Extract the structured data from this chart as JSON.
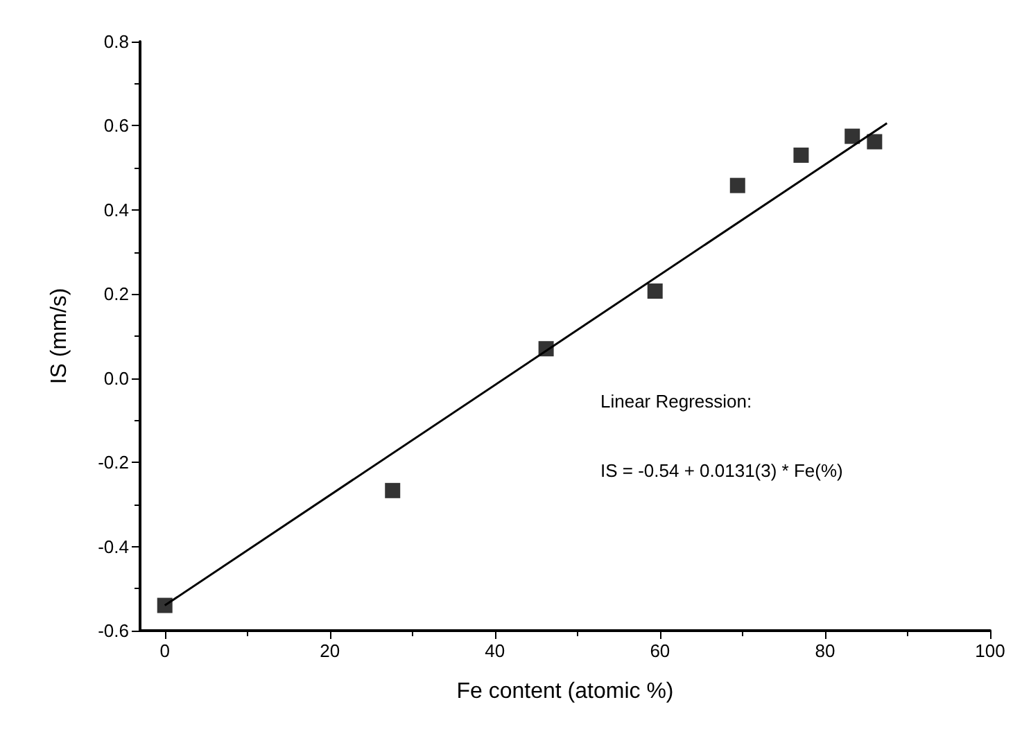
{
  "chart_data": {
    "type": "scatter",
    "xlabel": "Fe content (atomic %)",
    "ylabel": "IS (mm/s)",
    "annotations": [
      "Linear Regression:",
      "IS = -0.54 + 0.0131(3) * Fe(%)"
    ],
    "series": [
      {
        "color": "#000000",
        "marker": "square",
        "x": [
          0,
          27.6,
          46.2,
          59.4,
          69.4,
          77.1,
          83.3,
          86.0
        ],
        "values": [
          -0.54,
          -0.267,
          0.07,
          0.207,
          0.458,
          0.53,
          0.575,
          0.562
        ]
      },
      {
        "type": "line",
        "color": "#000000",
        "marker": "none",
        "line_style": "solid",
        "x": [
          0,
          87.5
        ],
        "values": [
          -0.54,
          0.606
        ]
      }
    ],
    "xlim": [
      -3,
      100
    ],
    "xticks": [
      0,
      20,
      40,
      60,
      80,
      100
    ],
    "ylim": [
      -0.6,
      0.8
    ],
    "yticks": [
      -0.6,
      -0.4,
      -0.2,
      {
        "value": 0,
        "label": "0.0"
      },
      0.2,
      0.4,
      0.6,
      0.8
    ],
    "grid": false
  }
}
